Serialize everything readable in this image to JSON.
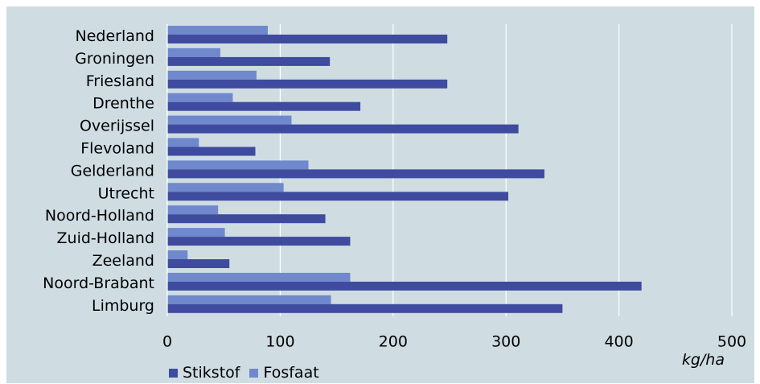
{
  "chart_data": {
    "type": "bar",
    "orientation": "horizontal",
    "categories": [
      "Nederland",
      "Groningen",
      "Friesland",
      "Drenthe",
      "Overijssel",
      "Flevoland",
      "Gelderland",
      "Utrecht",
      "Noord-Holland",
      "Zuid-Holland",
      "Zeeland",
      "Noord-Brabant",
      "Limburg"
    ],
    "series": [
      {
        "name": "Stikstof",
        "color": "#3f4b9e",
        "values": [
          248,
          144,
          248,
          171,
          311,
          78,
          334,
          302,
          140,
          162,
          55,
          420,
          350
        ]
      },
      {
        "name": "Fosfaat",
        "color": "#7088cc",
        "values": [
          89,
          47,
          79,
          58,
          110,
          28,
          125,
          103,
          45,
          51,
          18,
          162,
          145
        ]
      }
    ],
    "xlim": [
      0,
      500
    ],
    "xticks": [
      0,
      100,
      200,
      300,
      400,
      500
    ],
    "unit_label": "kg/ha",
    "grid": true,
    "legend_position": "bottom-left"
  }
}
